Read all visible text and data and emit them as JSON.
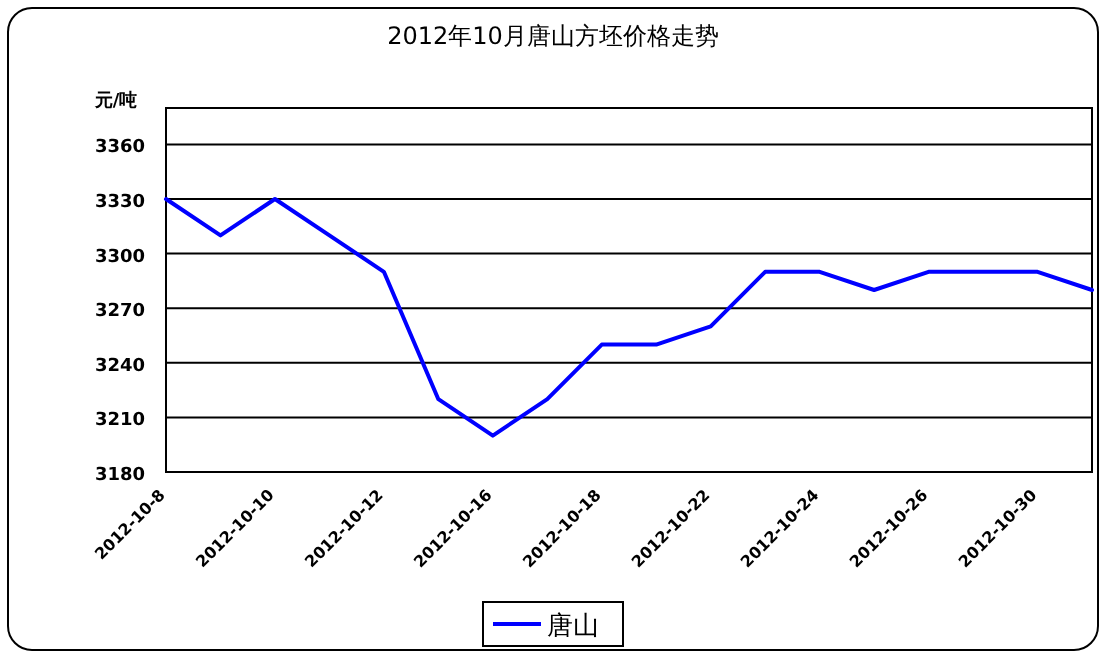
{
  "chart_data": {
    "type": "line",
    "title": "2012年10月唐山方坯价格走势",
    "ylabel": "元/吨",
    "categories": [
      "2012-10-8",
      null,
      "2012-10-10",
      null,
      "2012-10-12",
      null,
      "2012-10-16",
      null,
      "2012-10-18",
      null,
      "2012-10-22",
      null,
      "2012-10-24",
      null,
      "2012-10-26",
      null,
      "2012-10-30",
      null
    ],
    "series": [
      {
        "name": "唐山",
        "color": "#0000ff",
        "values": [
          3330,
          3310,
          3330,
          3310,
          3290,
          3220,
          3200,
          3220,
          3250,
          3250,
          3260,
          3290,
          3290,
          3280,
          3290,
          3290,
          3290,
          3280
        ]
      }
    ],
    "ylim": [
      3180,
      3380
    ],
    "yticks": [
      3180,
      3210,
      3240,
      3270,
      3300,
      3330,
      3360
    ],
    "grid": "y",
    "legend": "bottom"
  }
}
